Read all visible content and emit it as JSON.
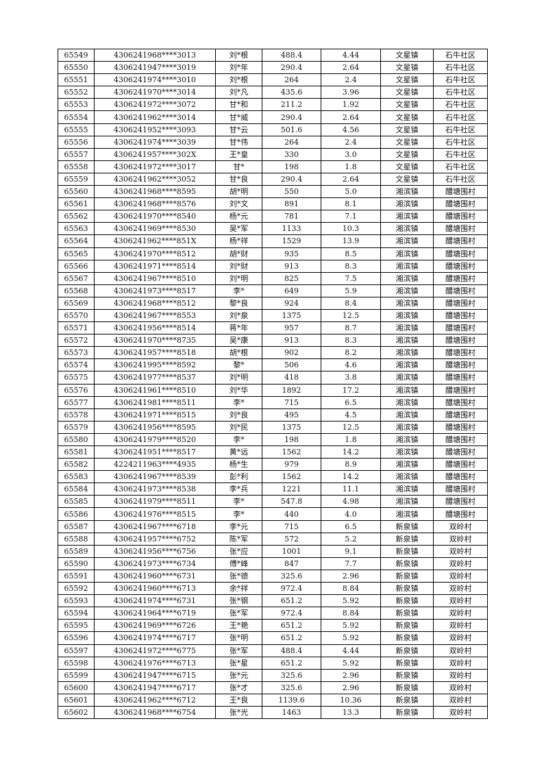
{
  "rows": [
    [
      "65549",
      "4306241968****3013",
      "刘*根",
      "488.4",
      "4.44",
      "文星镇",
      "石牛社区"
    ],
    [
      "65550",
      "4306241947****3019",
      "刘*年",
      "290.4",
      "2.64",
      "文星镇",
      "石牛社区"
    ],
    [
      "65551",
      "4306241974****3010",
      "刘*根",
      "264",
      "2.4",
      "文星镇",
      "石牛社区"
    ],
    [
      "65552",
      "4306241970****3014",
      "刘*凡",
      "435.6",
      "3.96",
      "文星镇",
      "石牛社区"
    ],
    [
      "65553",
      "4306241972****3072",
      "甘*和",
      "211.2",
      "1.92",
      "文星镇",
      "石牛社区"
    ],
    [
      "65554",
      "4306241962****3014",
      "甘*威",
      "290.4",
      "2.64",
      "文星镇",
      "石牛社区"
    ],
    [
      "65555",
      "4306241952****3093",
      "甘*云",
      "501.6",
      "4.56",
      "文星镇",
      "石牛社区"
    ],
    [
      "65556",
      "4306241974****3039",
      "甘*伟",
      "264",
      "2.4",
      "文星镇",
      "石牛社区"
    ],
    [
      "65557",
      "4306241957****302X",
      "王*皇",
      "330",
      "3.0",
      "文星镇",
      "石牛社区"
    ],
    [
      "65558",
      "4306241972****3017",
      "甘*",
      "198",
      "1.8",
      "文星镇",
      "石牛社区"
    ],
    [
      "65559",
      "4306241962****3052",
      "甘*良",
      "290.4",
      "2.64",
      "文星镇",
      "石牛社区"
    ],
    [
      "65560",
      "4306241968****8595",
      "胡*明",
      "550",
      "5.0",
      "湘滨镇",
      "醴塘围村"
    ],
    [
      "65561",
      "4306241968****8576",
      "刘*文",
      "891",
      "8.1",
      "湘滨镇",
      "醴塘围村"
    ],
    [
      "65562",
      "4306241970****8540",
      "杨*元",
      "781",
      "7.1",
      "湘滨镇",
      "醴塘围村"
    ],
    [
      "65563",
      "4306241969****8530",
      "吴*军",
      "1133",
      "10.3",
      "湘滨镇",
      "醴塘围村"
    ],
    [
      "65564",
      "4306241962****851X",
      "杨*祥",
      "1529",
      "13.9",
      "湘滨镇",
      "醴塘围村"
    ],
    [
      "65565",
      "4306241970****8512",
      "胡*财",
      "935",
      "8.5",
      "湘滨镇",
      "醴塘围村"
    ],
    [
      "65566",
      "4306241971****8514",
      "刘*财",
      "913",
      "8.3",
      "湘滨镇",
      "醴塘围村"
    ],
    [
      "65567",
      "4306241967****8510",
      "刘*明",
      "825",
      "7.5",
      "湘滨镇",
      "醴塘围村"
    ],
    [
      "65568",
      "4306241973****8517",
      "李*",
      "649",
      "5.9",
      "湘滨镇",
      "醴塘围村"
    ],
    [
      "65569",
      "4306241968****8512",
      "黎*良",
      "924",
      "8.4",
      "湘滨镇",
      "醴塘围村"
    ],
    [
      "65570",
      "4306241967****8553",
      "刘*泉",
      "1375",
      "12.5",
      "湘滨镇",
      "醴塘围村"
    ],
    [
      "65571",
      "4306241956****8514",
      "蒋*年",
      "957",
      "8.7",
      "湘滨镇",
      "醴塘围村"
    ],
    [
      "65572",
      "4306241970****8735",
      "吴*康",
      "913",
      "8.3",
      "湘滨镇",
      "醴塘围村"
    ],
    [
      "65573",
      "4306241957****8518",
      "胡*根",
      "902",
      "8.2",
      "湘滨镇",
      "醴塘围村"
    ],
    [
      "65574",
      "4306241995****8592",
      "黎*",
      "506",
      "4.6",
      "湘滨镇",
      "醴塘围村"
    ],
    [
      "65575",
      "4306241977****8537",
      "刘*明",
      "418",
      "3.8",
      "湘滨镇",
      "醴塘围村"
    ],
    [
      "65576",
      "4306241961****8510",
      "刘*华",
      "1892",
      "17.2",
      "湘滨镇",
      "醴塘围村"
    ],
    [
      "65577",
      "4306241981****8511",
      "李*",
      "715",
      "6.5",
      "湘滨镇",
      "醴塘围村"
    ],
    [
      "65578",
      "4306241971****8515",
      "刘*良",
      "495",
      "4.5",
      "湘滨镇",
      "醴塘围村"
    ],
    [
      "65579",
      "4306241956****8595",
      "刘*民",
      "1375",
      "12.5",
      "湘滨镇",
      "醴塘围村"
    ],
    [
      "65580",
      "4306241979****8520",
      "李*",
      "198",
      "1.8",
      "湘滨镇",
      "醴塘围村"
    ],
    [
      "65581",
      "4306241951****8517",
      "黄*远",
      "1562",
      "14.2",
      "湘滨镇",
      "醴塘围村"
    ],
    [
      "65582",
      "4224211963****4935",
      "杨*生",
      "979",
      "8.9",
      "湘滨镇",
      "醴塘围村"
    ],
    [
      "65583",
      "4306241967****8539",
      "彭*利",
      "1562",
      "14.2",
      "湘滨镇",
      "醴塘围村"
    ],
    [
      "65584",
      "4306241973****8538",
      "李*兵",
      "1221",
      "11.1",
      "湘滨镇",
      "醴塘围村"
    ],
    [
      "65585",
      "4306241979****8511",
      "李*",
      "547.8",
      "4.98",
      "湘滨镇",
      "醴塘围村"
    ],
    [
      "65586",
      "4306241976****8515",
      "李*",
      "440",
      "4.0",
      "湘滨镇",
      "醴塘围村"
    ],
    [
      "65587",
      "4306241967****6718",
      "李*元",
      "715",
      "6.5",
      "新泉镇",
      "双岭村"
    ],
    [
      "65588",
      "4306241957****6752",
      "陈*军",
      "572",
      "5.2",
      "新泉镇",
      "双岭村"
    ],
    [
      "65589",
      "4306241956****6756",
      "张*应",
      "1001",
      "9.1",
      "新泉镇",
      "双岭村"
    ],
    [
      "65590",
      "4306241973****6734",
      "傅*峰",
      "847",
      "7.7",
      "新泉镇",
      "双岭村"
    ],
    [
      "65591",
      "4306241960****6731",
      "张*德",
      "325.6",
      "2.96",
      "新泉镇",
      "双岭村"
    ],
    [
      "65592",
      "4306241960****6713",
      "余*祥",
      "972.4",
      "8.84",
      "新泉镇",
      "双岭村"
    ],
    [
      "65593",
      "4306241974****6731",
      "张*钢",
      "651.2",
      "5.92",
      "新泉镇",
      "双岭村"
    ],
    [
      "65594",
      "4306241964****6719",
      "张*军",
      "972.4",
      "8.84",
      "新泉镇",
      "双岭村"
    ],
    [
      "65595",
      "4306241969****6726",
      "王*艳",
      "651.2",
      "5.92",
      "新泉镇",
      "双岭村"
    ],
    [
      "65596",
      "4306241974****6717",
      "张*明",
      "651.2",
      "5.92",
      "新泉镇",
      "双岭村"
    ],
    [
      "65597",
      "4306241972****6775",
      "张*军",
      "488.4",
      "4.44",
      "新泉镇",
      "双岭村"
    ],
    [
      "65598",
      "4306241976****6713",
      "张*星",
      "651.2",
      "5.92",
      "新泉镇",
      "双岭村"
    ],
    [
      "65599",
      "4306241947****6715",
      "张*元",
      "325.6",
      "2.96",
      "新泉镇",
      "双岭村"
    ],
    [
      "65600",
      "4306241947****6717",
      "张*才",
      "325.6",
      "2.96",
      "新泉镇",
      "双岭村"
    ],
    [
      "65601",
      "4306241962****6712",
      "王*良",
      "1139.6",
      "10.36",
      "新泉镇",
      "双岭村"
    ],
    [
      "65602",
      "4306241968****6754",
      "张*光",
      "1463",
      "13.3",
      "新泉镇",
      "双岭村"
    ]
  ]
}
